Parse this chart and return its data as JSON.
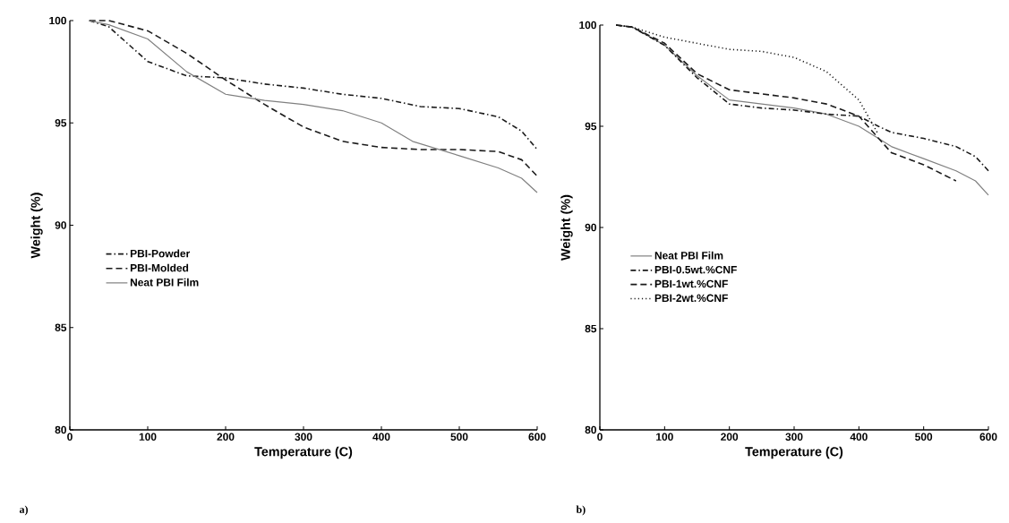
{
  "chart_data": [
    {
      "type": "line",
      "xlabel": "Temperature (C)",
      "ylabel": "Weight (%)",
      "xlim": [
        0,
        600
      ],
      "ylim": [
        80,
        100
      ],
      "xticks": [
        0,
        100,
        200,
        300,
        400,
        500,
        600
      ],
      "yticks": [
        80,
        85,
        90,
        95,
        100
      ],
      "legend": "left",
      "grid": false,
      "annotations": [
        "a)"
      ],
      "series": [
        {
          "name": "PBI-Powder",
          "color": "#1a1a1a",
          "line_style": "dashdot",
          "x": [
            25,
            50,
            100,
            150,
            200,
            250,
            300,
            350,
            400,
            450,
            500,
            550,
            580,
            600
          ],
          "values": [
            100,
            99.7,
            98.0,
            97.3,
            97.2,
            96.9,
            96.7,
            96.4,
            96.2,
            95.8,
            95.7,
            95.3,
            94.6,
            93.7
          ]
        },
        {
          "name": "PBI-Molded",
          "color": "#1a1a1a",
          "line_style": "dashed",
          "x": [
            25,
            50,
            100,
            150,
            200,
            250,
            300,
            350,
            400,
            450,
            500,
            550,
            580,
            600
          ],
          "values": [
            100,
            100,
            99.5,
            98.4,
            97.1,
            95.9,
            94.8,
            94.1,
            93.8,
            93.7,
            93.7,
            93.6,
            93.2,
            92.4
          ]
        },
        {
          "name": "Neat PBI Film",
          "color": "#808080",
          "line_style": "solid",
          "x": [
            25,
            50,
            100,
            150,
            200,
            250,
            300,
            350,
            400,
            440,
            500,
            550,
            580,
            600
          ],
          "values": [
            100,
            99.8,
            99.1,
            97.5,
            96.4,
            96.1,
            95.9,
            95.6,
            95.0,
            94.1,
            93.4,
            92.8,
            92.3,
            91.6
          ]
        }
      ]
    },
    {
      "type": "line",
      "xlabel": "Temperature (C)",
      "ylabel": "Weight (%)",
      "xlim": [
        0,
        600
      ],
      "ylim": [
        80,
        100
      ],
      "xticks": [
        0,
        100,
        200,
        300,
        400,
        500,
        600
      ],
      "yticks": [
        80,
        85,
        90,
        95,
        100
      ],
      "legend": "left",
      "grid": false,
      "annotations": [
        "b)"
      ],
      "series": [
        {
          "name": "Neat PBI Film",
          "color": "#808080",
          "line_style": "solid",
          "x": [
            25,
            50,
            100,
            150,
            200,
            250,
            300,
            350,
            400,
            450,
            500,
            550,
            580,
            600
          ],
          "values": [
            100,
            99.9,
            99.0,
            97.5,
            96.3,
            96.1,
            95.9,
            95.6,
            95.0,
            94.0,
            93.4,
            92.8,
            92.3,
            91.6
          ]
        },
        {
          "name": "PBI-0.5wt.%CNF",
          "color": "#1a1a1a",
          "line_style": "dashdot",
          "x": [
            25,
            50,
            100,
            150,
            200,
            250,
            300,
            350,
            400,
            430,
            450,
            500,
            550,
            580,
            600
          ],
          "values": [
            100,
            99.9,
            99.0,
            97.4,
            96.1,
            95.9,
            95.8,
            95.6,
            95.5,
            95.0,
            94.7,
            94.4,
            94.0,
            93.5,
            92.8
          ]
        },
        {
          "name": "PBI-1wt.%CNF",
          "color": "#1a1a1a",
          "line_style": "dashed",
          "x": [
            25,
            50,
            100,
            150,
            200,
            250,
            300,
            350,
            400,
            450,
            500,
            550
          ],
          "values": [
            100,
            99.9,
            99.1,
            97.6,
            96.8,
            96.6,
            96.4,
            96.1,
            95.5,
            93.7,
            93.1,
            92.3
          ]
        },
        {
          "name": "PBI-2wt.%CNF",
          "color": "#1a1a1a",
          "line_style": "dotted",
          "x": [
            25,
            50,
            100,
            150,
            200,
            250,
            300,
            350,
            400,
            430
          ],
          "values": [
            100,
            99.9,
            99.4,
            99.1,
            98.8,
            98.7,
            98.4,
            97.7,
            96.3,
            94.6
          ]
        }
      ]
    }
  ]
}
